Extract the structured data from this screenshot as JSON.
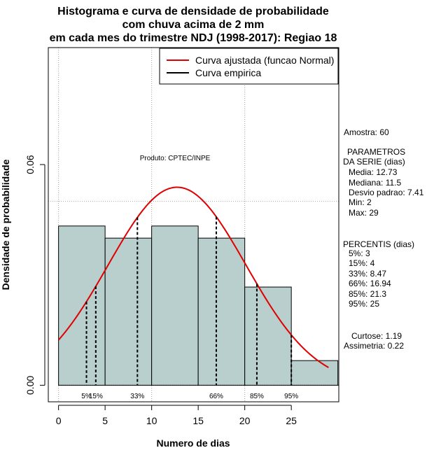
{
  "colors": {
    "bar_fill": "#b8cfcd",
    "curve": "#e00000",
    "grid": "#a0a0a0",
    "axis": "#000000"
  },
  "chart_data": {
    "type": "bar",
    "title": [
      "Histograma e curva de densidade de probabilidade",
      "com chuva acima de 2 mm",
      "em cada mes do trimestre NDJ (1998-2017): Regiao 18"
    ],
    "xlabel": "Numero de dias",
    "ylabel": "Densidade de probabilidade",
    "xlim": [
      -1.1,
      30.1
    ],
    "ylim": [
      -0.0045,
      0.0918
    ],
    "x_ticks": [
      0,
      5,
      10,
      15,
      20,
      25
    ],
    "y_ticks": [
      0.0,
      0.06
    ],
    "y_tick_labels": [
      "0.00",
      "0.06"
    ],
    "grid_x": [
      0,
      10,
      20
    ],
    "grid_y": [
      0.05
    ],
    "bins": [
      {
        "from": 0,
        "to": 5,
        "density": 0.0433
      },
      {
        "from": 5,
        "to": 10,
        "density": 0.04
      },
      {
        "from": 10,
        "to": 15,
        "density": 0.0433
      },
      {
        "from": 15,
        "to": 20,
        "density": 0.04
      },
      {
        "from": 20,
        "to": 25,
        "density": 0.0267
      },
      {
        "from": 25,
        "to": 30,
        "density": 0.0067
      }
    ],
    "normal_curve": {
      "mean": 12.73,
      "sd": 7.41,
      "x_from": 0,
      "x_to": 29
    },
    "percentile_lines": [
      {
        "label": "5%",
        "x": 3
      },
      {
        "label": "15%",
        "x": 4
      },
      {
        "label": "33%",
        "x": 8.47
      },
      {
        "label": "66%",
        "x": 16.94
      },
      {
        "label": "85%",
        "x": 21.3
      },
      {
        "label": "95%",
        "x": 25
      }
    ],
    "legend": {
      "position": "top-right",
      "entries": [
        {
          "label": "Curva ajustada (funcao Normal)",
          "color": "#e00000"
        },
        {
          "label": "Curva empirica",
          "color": "#000000"
        }
      ]
    },
    "annotations": {
      "product": "Produto: CPTEC/INPE"
    }
  },
  "side_panel": {
    "sample": "Amostra: 60",
    "params_title": "PARAMETROS",
    "params_subtitle": "DA SERIE (dias)",
    "params": [
      "Media: 12.73",
      "Mediana: 11.5",
      "Desvio padrao: 7.41",
      "Min: 2",
      "Max: 29"
    ],
    "pct_title": "PERCENTIS (dias)",
    "pcts": [
      "5%: 3",
      "15%: 4",
      "33%: 8.47",
      "66%: 16.94",
      "85%: 21.3",
      "95%: 25"
    ],
    "kurtosis": "Curtose: 1.19",
    "skewness": "Assimetria: 0.22"
  }
}
